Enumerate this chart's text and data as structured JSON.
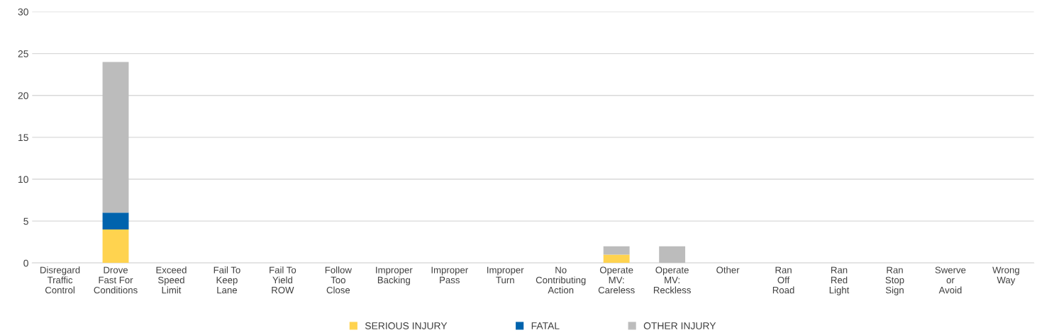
{
  "chart_data": {
    "type": "bar",
    "stacked": true,
    "categories": [
      "Disregard\nTraffic\nControl",
      "Drove\nFast For\nConditions",
      "Exceed\nSpeed\nLimit",
      "Fail To\nKeep\nLane",
      "Fail To\nYield\nROW",
      "Follow\nToo\nClose",
      "Improper\nBacking",
      "Improper\nPass",
      "Improper\nTurn",
      "No\nContributing\nAction",
      "Operate\nMV:\nCareless",
      "Operate\nMV:\nReckless",
      "Other",
      "Ran\nOff\nRoad",
      "Ran\nRed\nLight",
      "Ran\nStop\nSign",
      "Swerve\nor\nAvoid",
      "Wrong\nWay"
    ],
    "series": [
      {
        "name": "SERIOUS INJURY",
        "color": "#ffd34f",
        "values": [
          0,
          4,
          0,
          0,
          0,
          0,
          0,
          0,
          0,
          0,
          1,
          0,
          0,
          0,
          0,
          0,
          0,
          0
        ]
      },
      {
        "name": "FATAL",
        "color": "#0063ad",
        "values": [
          0,
          2,
          0,
          0,
          0,
          0,
          0,
          0,
          0,
          0,
          0,
          0,
          0,
          0,
          0,
          0,
          0,
          0
        ]
      },
      {
        "name": "OTHER INJURY",
        "color": "#bcbcbc",
        "values": [
          0,
          18,
          0,
          0,
          0,
          0,
          0,
          0,
          0,
          0,
          1,
          2,
          0,
          0,
          0,
          0,
          0,
          0
        ]
      }
    ],
    "ylim": [
      0,
      30
    ],
    "yticks": [
      0,
      5,
      10,
      15,
      20,
      25,
      30
    ],
    "grid": "y",
    "legend": "bottom"
  }
}
